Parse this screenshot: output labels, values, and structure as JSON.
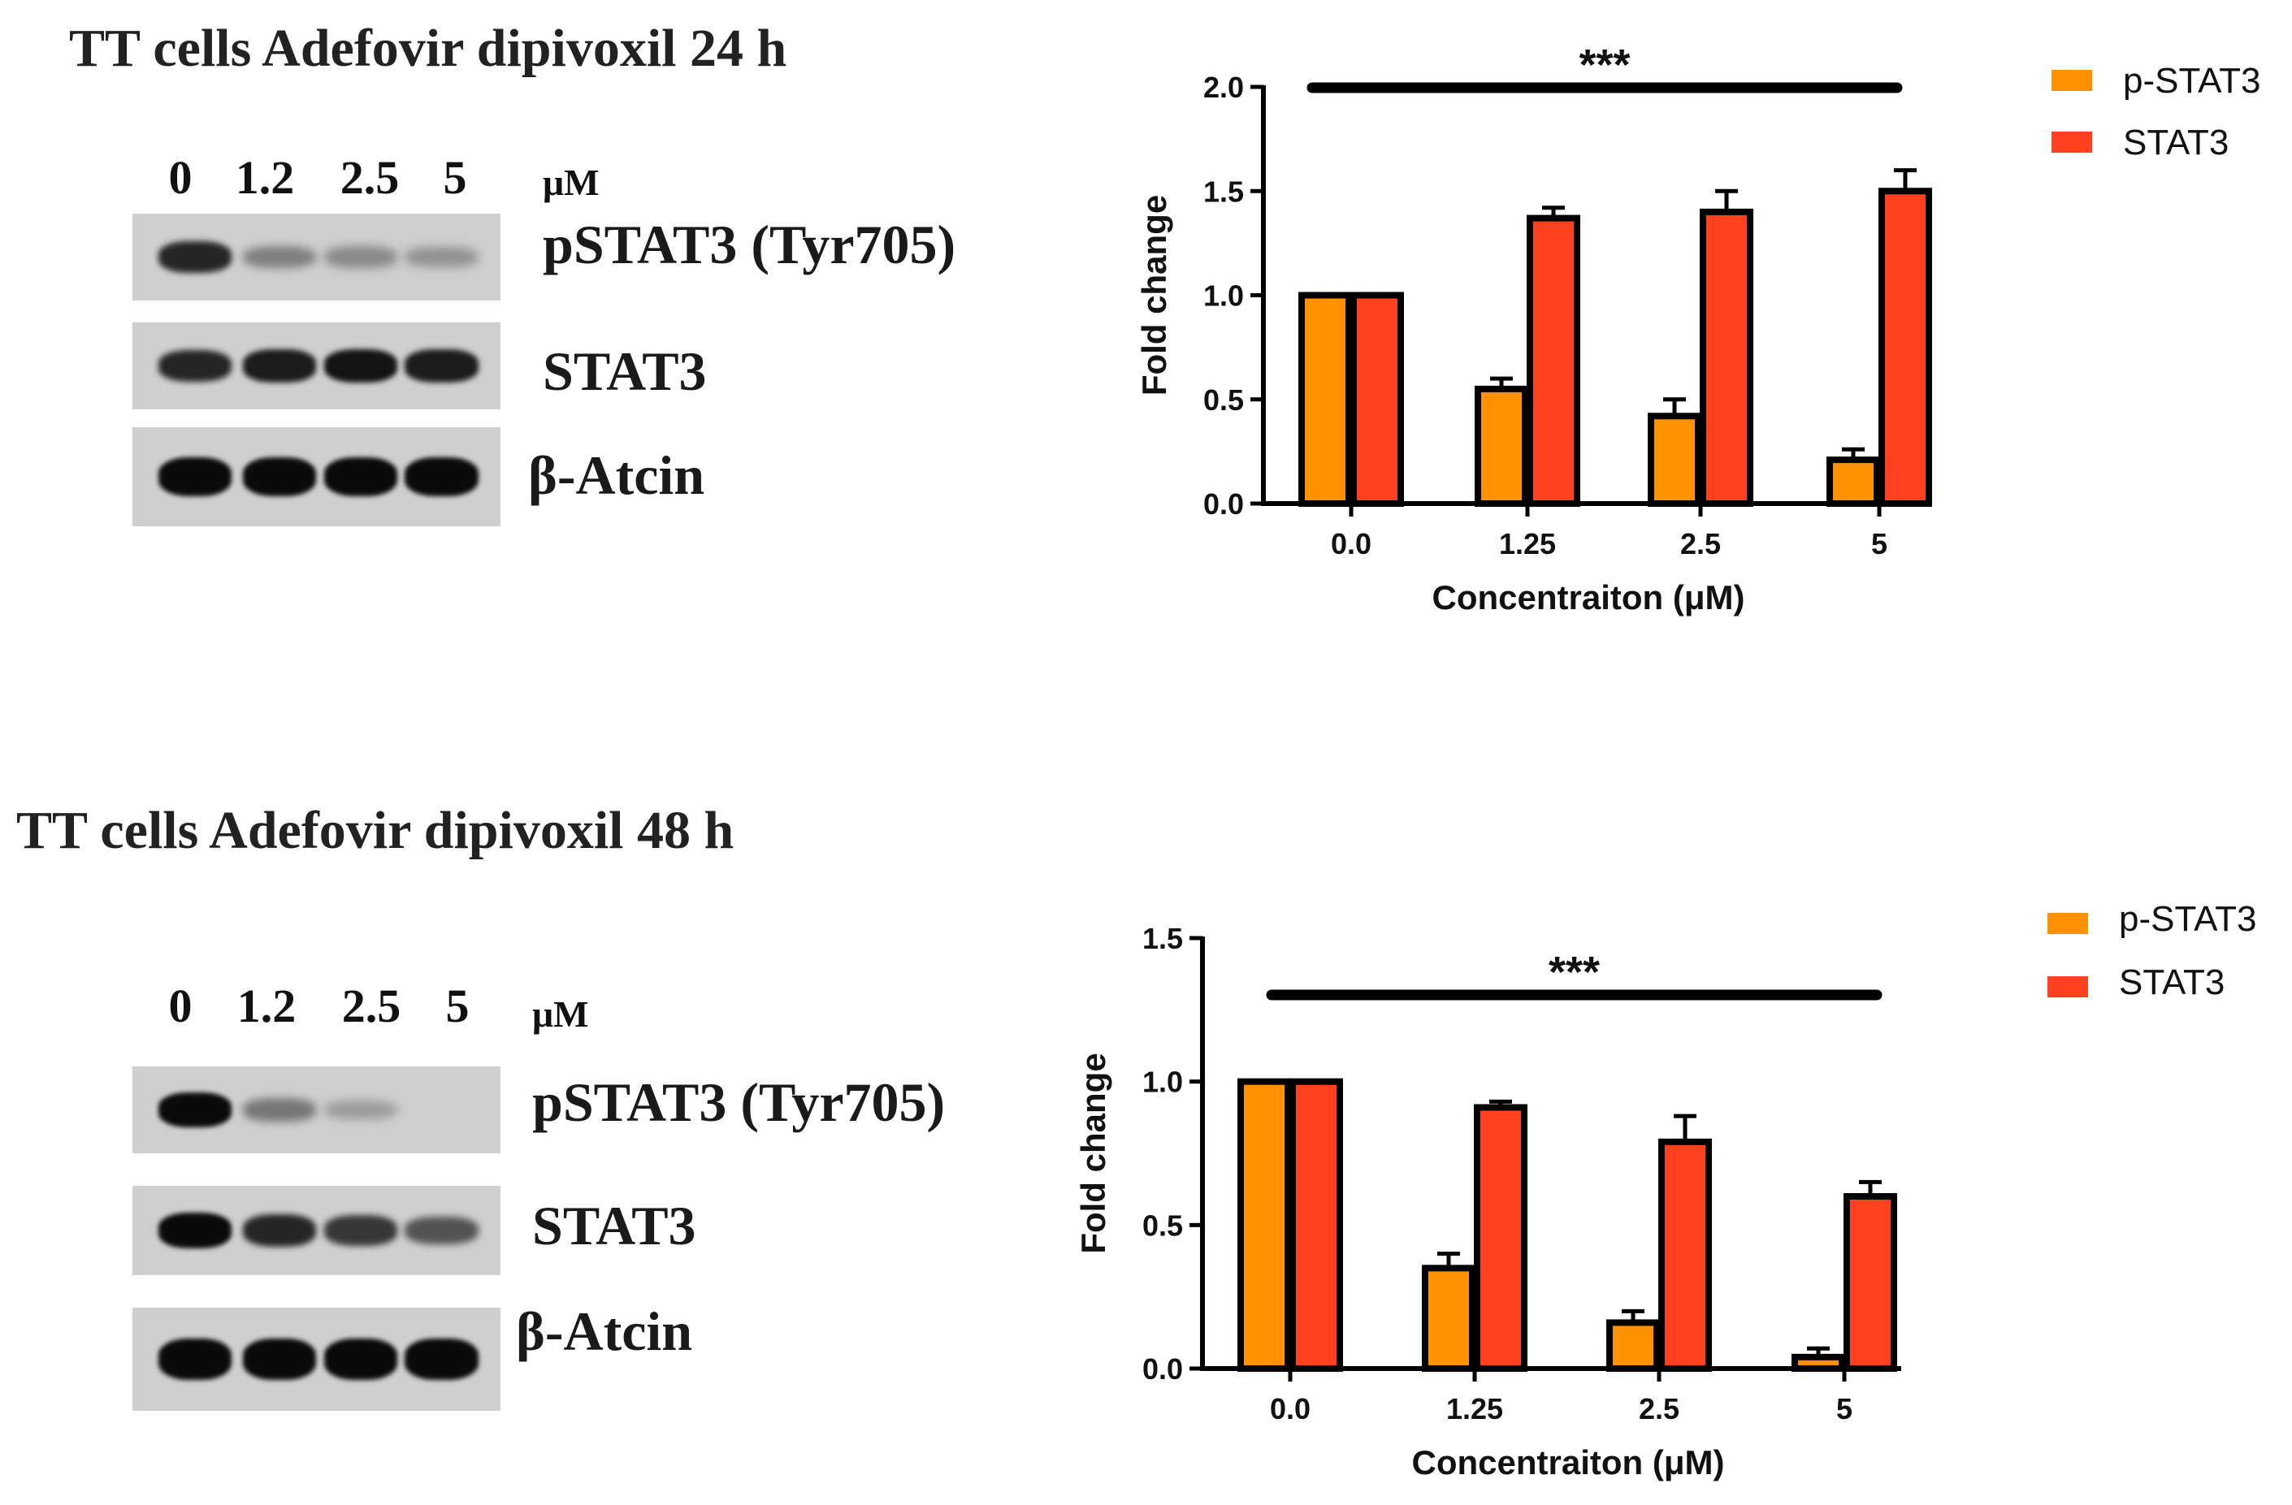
{
  "colors": {
    "p_stat3": "#ff9200",
    "stat3": "#ff4120",
    "stroke": "#000000"
  },
  "panels": [
    {
      "blot": {
        "title": "TT cells Adefovir dipivoxil 24 h",
        "lanes": [
          "0",
          "1.2",
          "2.5",
          "5"
        ],
        "unit": "μM",
        "rows": [
          {
            "label": "pSTAT3 (Tyr705)",
            "intensities": [
              0.85,
              0.35,
              0.3,
              0.25
            ]
          },
          {
            "label": "STAT3",
            "intensities": [
              0.85,
              0.9,
              0.95,
              0.9
            ]
          },
          {
            "label": "β-Atcin",
            "intensities": [
              1.0,
              1.0,
              1.0,
              1.0
            ]
          }
        ]
      },
      "legend": [
        {
          "label": "p-STAT3",
          "color": "#ff9200"
        },
        {
          "label": "STAT3",
          "color": "#ff4120"
        }
      ]
    },
    {
      "blot": {
        "title": "TT cells Adefovir dipivoxil 48 h",
        "lanes": [
          "0",
          "1.2",
          "2.5",
          "5"
        ],
        "unit": "μM",
        "rows": [
          {
            "label": "pSTAT3 (Tyr705)",
            "intensities": [
              1.0,
              0.4,
              0.2,
              0.0
            ]
          },
          {
            "label": "STAT3",
            "intensities": [
              1.0,
              0.85,
              0.75,
              0.6
            ]
          },
          {
            "label": "β-Atcin",
            "intensities": [
              1.0,
              1.0,
              1.0,
              1.0
            ]
          }
        ]
      },
      "legend": [
        {
          "label": "p-STAT3",
          "color": "#ff9200"
        },
        {
          "label": "STAT3",
          "color": "#ff4120"
        }
      ]
    }
  ],
  "chart_data": [
    {
      "type": "bar",
      "title": "",
      "categories": [
        "0.0",
        "1.25",
        "2.5",
        "5"
      ],
      "series": [
        {
          "name": "p-STAT3",
          "values": [
            1.0,
            0.55,
            0.42,
            0.21
          ],
          "errors": [
            0.0,
            0.05,
            0.08,
            0.05
          ]
        },
        {
          "name": "STAT3",
          "values": [
            1.0,
            1.37,
            1.4,
            1.5
          ],
          "errors": [
            0.0,
            0.05,
            0.1,
            0.1
          ]
        }
      ],
      "xlabel": "Concentraiton (μM)",
      "ylabel": "Fold change",
      "ylim": [
        0,
        2.0
      ],
      "yticks": [
        "0.0",
        "0.5",
        "1.0",
        "1.5",
        "2.0"
      ],
      "annotation": "***",
      "legend_position": "top-right",
      "grid": false
    },
    {
      "type": "bar",
      "title": "",
      "categories": [
        "0.0",
        "1.25",
        "2.5",
        "5"
      ],
      "series": [
        {
          "name": "p-STAT3",
          "values": [
            1.0,
            0.35,
            0.16,
            0.04
          ],
          "errors": [
            0.0,
            0.05,
            0.04,
            0.03
          ]
        },
        {
          "name": "STAT3",
          "values": [
            1.0,
            0.91,
            0.79,
            0.6
          ],
          "errors": [
            0.0,
            0.02,
            0.09,
            0.05
          ]
        }
      ],
      "xlabel": "Concentraiton (μM)",
      "ylabel": "Fold change",
      "ylim": [
        0,
        1.5
      ],
      "yticks": [
        "0.0",
        "0.5",
        "1.0",
        "1.5"
      ],
      "annotation": "***",
      "legend_position": "top-right",
      "grid": false
    }
  ]
}
